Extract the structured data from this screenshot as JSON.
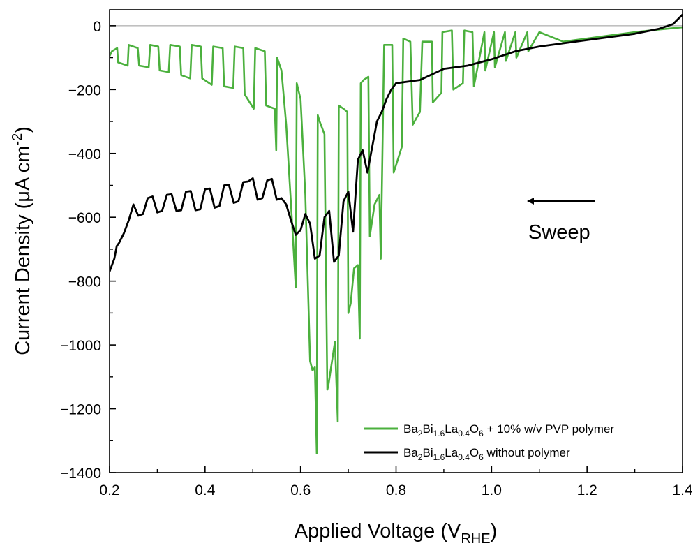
{
  "chart_data": {
    "type": "line",
    "xlabel": {
      "main": "Applied Voltage (V",
      "sub": "RHE",
      "tail": ")"
    },
    "ylabel": {
      "main": "Current Density (μA cm",
      "sup": "-2",
      "tail": ")"
    },
    "xlim": [
      0.2,
      1.4
    ],
    "ylim": [
      -1400,
      50
    ],
    "xticks": [
      0.2,
      0.4,
      0.6,
      0.8,
      1.0,
      1.2,
      1.4
    ],
    "xtick_labels": [
      "0.2",
      "0.4",
      "0.6",
      "0.8",
      "1.0",
      "1.2",
      "1.4"
    ],
    "yticks": [
      0,
      -200,
      -400,
      -600,
      -800,
      -1000,
      -1200,
      -1400
    ],
    "ytick_labels": [
      "0",
      "−200",
      "−400",
      "−600",
      "−800",
      "−1000",
      "−1200",
      "−1400"
    ],
    "zero_line": true,
    "annotation": {
      "text": "Sweep",
      "direction": "decreasing-x"
    },
    "legend": {
      "position": "lower-right",
      "entries": [
        {
          "parts": [
            [
              "Ba",
              ""
            ],
            [
              "2",
              "sub"
            ],
            [
              "Bi",
              ""
            ],
            [
              "1.6",
              "sub"
            ],
            [
              "La",
              ""
            ],
            [
              "0.4",
              "sub"
            ],
            [
              "O",
              ""
            ],
            [
              "6",
              "sub"
            ],
            [
              " + 10% w/v PVP polymer",
              ""
            ]
          ],
          "color": "#4bb03d"
        },
        {
          "parts": [
            [
              "Ba",
              ""
            ],
            [
              "2",
              "sub"
            ],
            [
              "Bi",
              ""
            ],
            [
              "1.6",
              "sub"
            ],
            [
              "La",
              ""
            ],
            [
              "0.4",
              "sub"
            ],
            [
              "O",
              ""
            ],
            [
              "6",
              "sub"
            ],
            [
              " without polymer",
              ""
            ]
          ],
          "color": "#000000"
        }
      ]
    },
    "series": [
      {
        "color": "#4bb03d",
        "x": [
          0.2,
          0.205,
          0.216,
          0.218,
          0.238,
          0.24,
          0.259,
          0.262,
          0.282,
          0.285,
          0.302,
          0.305,
          0.324,
          0.327,
          0.347,
          0.35,
          0.369,
          0.372,
          0.391,
          0.394,
          0.414,
          0.417,
          0.437,
          0.44,
          0.459,
          0.462,
          0.48,
          0.483,
          0.502,
          0.505,
          0.525,
          0.528,
          0.546,
          0.549,
          0.551,
          0.56,
          0.57,
          0.58,
          0.59,
          0.592,
          0.6,
          0.61,
          0.62,
          0.625,
          0.63,
          0.634,
          0.636,
          0.64,
          0.645,
          0.65,
          0.656,
          0.658,
          0.665,
          0.672,
          0.678,
          0.68,
          0.69,
          0.698,
          0.7,
          0.705,
          0.712,
          0.72,
          0.724,
          0.726,
          0.732,
          0.742,
          0.745,
          0.755,
          0.765,
          0.768,
          0.775,
          0.78,
          0.792,
          0.795,
          0.812,
          0.815,
          0.83,
          0.835,
          0.85,
          0.855,
          0.875,
          0.877,
          0.895,
          0.897,
          0.917,
          0.92,
          0.94,
          0.943,
          0.96,
          0.963,
          0.985,
          0.987,
          1.005,
          1.007,
          1.028,
          1.03,
          1.05,
          1.052,
          1.075,
          1.077,
          1.1,
          1.15,
          1.2,
          1.25,
          1.3,
          1.35,
          1.4
        ],
        "y": [
          -95,
          -80,
          -70,
          -115,
          -125,
          -60,
          -70,
          -125,
          -130,
          -60,
          -65,
          -140,
          -145,
          -60,
          -65,
          -155,
          -165,
          -60,
          -65,
          -165,
          -185,
          -65,
          -70,
          -190,
          -195,
          -65,
          -70,
          -215,
          -260,
          -70,
          -80,
          -250,
          -260,
          -390,
          -100,
          -140,
          -310,
          -560,
          -820,
          -180,
          -230,
          -530,
          -1050,
          -1080,
          -1070,
          -1340,
          -280,
          -300,
          -320,
          -340,
          -1140,
          -1130,
          -1060,
          -990,
          -1240,
          -250,
          -260,
          -270,
          -900,
          -870,
          -760,
          -750,
          -980,
          -180,
          -170,
          -160,
          -660,
          -560,
          -530,
          -730,
          -60,
          -60,
          -60,
          -460,
          -380,
          -40,
          -50,
          -310,
          -270,
          -50,
          -50,
          -240,
          -210,
          -20,
          -15,
          -200,
          -180,
          -15,
          -20,
          -190,
          -20,
          -140,
          -20,
          -130,
          -20,
          -110,
          -20,
          -100,
          -20,
          -80,
          -20,
          -50,
          -40,
          -30,
          -20,
          -12,
          -5
        ]
      },
      {
        "color": "#000000",
        "x": [
          0.2,
          0.21,
          0.215,
          0.22,
          0.23,
          0.24,
          0.25,
          0.26,
          0.27,
          0.28,
          0.29,
          0.3,
          0.31,
          0.32,
          0.33,
          0.34,
          0.35,
          0.36,
          0.37,
          0.38,
          0.39,
          0.4,
          0.41,
          0.42,
          0.43,
          0.44,
          0.45,
          0.46,
          0.47,
          0.48,
          0.49,
          0.5,
          0.51,
          0.52,
          0.53,
          0.54,
          0.55,
          0.56,
          0.57,
          0.58,
          0.59,
          0.6,
          0.61,
          0.62,
          0.63,
          0.64,
          0.65,
          0.66,
          0.67,
          0.68,
          0.69,
          0.7,
          0.71,
          0.72,
          0.73,
          0.74,
          0.75,
          0.76,
          0.77,
          0.78,
          0.79,
          0.8,
          0.85,
          0.9,
          0.95,
          1.0,
          1.05,
          1.1,
          1.15,
          1.2,
          1.25,
          1.3,
          1.35,
          1.38,
          1.4
        ],
        "y": [
          -770,
          -730,
          -690,
          -680,
          -650,
          -610,
          -560,
          -595,
          -590,
          -540,
          -535,
          -585,
          -580,
          -530,
          -528,
          -580,
          -578,
          -520,
          -518,
          -578,
          -575,
          -512,
          -510,
          -570,
          -565,
          -500,
          -498,
          -555,
          -550,
          -490,
          -488,
          -478,
          -545,
          -540,
          -485,
          -480,
          -545,
          -540,
          -560,
          -610,
          -655,
          -640,
          -590,
          -620,
          -730,
          -720,
          -600,
          -580,
          -740,
          -720,
          -550,
          -520,
          -645,
          -420,
          -390,
          -460,
          -380,
          -300,
          -270,
          -230,
          -200,
          -180,
          -170,
          -135,
          -125,
          -105,
          -80,
          -65,
          -55,
          -45,
          -35,
          -25,
          -10,
          5,
          35
        ]
      }
    ]
  }
}
